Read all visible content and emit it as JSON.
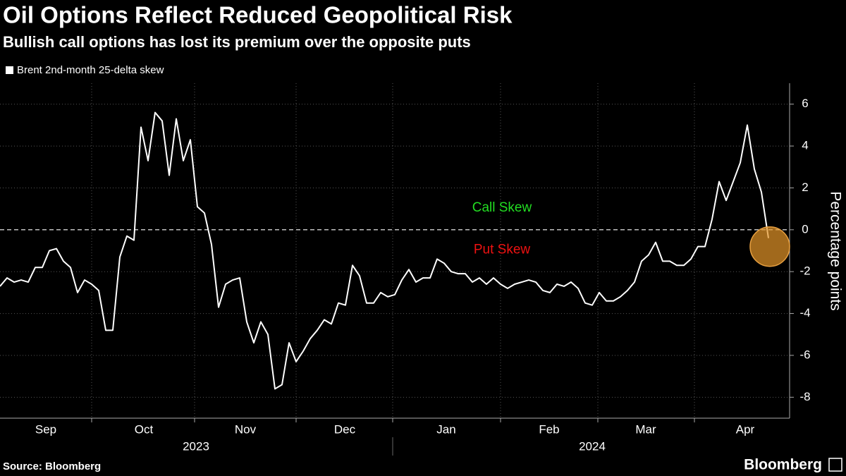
{
  "chart_data": {
    "type": "line",
    "title": "Oil Options Reflect Reduced Geopolitical Risk",
    "subtitle": "Bullish call options has lost its premium over the opposite puts",
    "y_label": "Percentage points",
    "source": "Source: Bloomberg",
    "brand": "Bloomberg",
    "annotations": [
      {
        "text": "Call Skew",
        "color": "#22dd22",
        "y": 1
      },
      {
        "text": "Put Skew",
        "color": "#ee1111",
        "y": -1
      }
    ],
    "series": [
      {
        "name": "Brent 2nd-month 25-delta skew",
        "color": "#ffffff",
        "values": [
          -2.7,
          -2.3,
          -2.5,
          -2.4,
          -2.5,
          -1.8,
          -1.8,
          -1.0,
          -0.9,
          -1.5,
          -1.8,
          -3.0,
          -2.4,
          -2.6,
          -2.9,
          -4.8,
          -4.8,
          -1.3,
          -0.3,
          -0.5,
          4.9,
          3.3,
          5.6,
          5.2,
          2.6,
          5.3,
          3.3,
          4.3,
          1.1,
          0.8,
          -0.7,
          -3.7,
          -2.6,
          -2.4,
          -2.3,
          -4.4,
          -5.4,
          -4.4,
          -5.0,
          -7.6,
          -7.4,
          -5.4,
          -6.3,
          -5.8,
          -5.2,
          -4.8,
          -4.3,
          -4.5,
          -3.5,
          -3.6,
          -1.7,
          -2.2,
          -3.5,
          -3.5,
          -3.0,
          -3.2,
          -3.1,
          -2.4,
          -1.9,
          -2.5,
          -2.3,
          -2.3,
          -1.4,
          -1.6,
          -2.0,
          -2.1,
          -2.1,
          -2.5,
          -2.3,
          -2.6,
          -2.3,
          -2.6,
          -2.8,
          -2.6,
          -2.5,
          -2.4,
          -2.5,
          -2.9,
          -3.0,
          -2.6,
          -2.7,
          -2.5,
          -2.8,
          -3.5,
          -3.6,
          -3.0,
          -3.4,
          -3.4,
          -3.2,
          -2.9,
          -2.5,
          -1.5,
          -1.2,
          -0.6,
          -1.5,
          -1.5,
          -1.7,
          -1.7,
          -1.4,
          -0.8,
          -0.8,
          0.5,
          2.3,
          1.4,
          2.3,
          3.2,
          5.0,
          2.9,
          1.8,
          -0.4
        ]
      }
    ],
    "xlim": [
      0,
      112
    ],
    "xticks": [
      13,
      27.6,
      42,
      55.7,
      71,
      84.8,
      98.5
    ],
    "months": [
      {
        "value": 6.5,
        "label": "Sep"
      },
      {
        "value": 20.4,
        "label": "Oct"
      },
      {
        "value": 34.8,
        "label": "Nov"
      },
      {
        "value": 48.9,
        "label": "Dec"
      },
      {
        "value": 63.3,
        "label": "Jan"
      },
      {
        "value": 77.9,
        "label": "Feb"
      },
      {
        "value": 91.6,
        "label": "Mar"
      },
      {
        "value": 105.7,
        "label": "Apr"
      }
    ],
    "years": [
      {
        "value": 27.8,
        "label": "2023"
      },
      {
        "value": 84,
        "label": "2024"
      }
    ],
    "year_divider": 55.7,
    "ylim": [
      -9,
      7
    ],
    "yticks": [
      -8,
      -6,
      -4,
      -2,
      0,
      2,
      4,
      6
    ],
    "grid": true
  }
}
